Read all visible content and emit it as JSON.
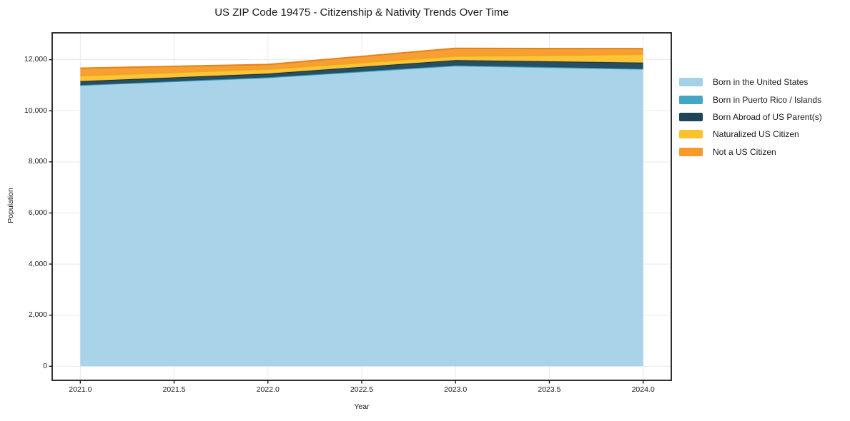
{
  "chart_data": {
    "type": "area",
    "stacked": true,
    "title": "US ZIP Code 19475 - Citizenship & Nativity Trends Over Time",
    "xlabel": "Year",
    "ylabel": "Population",
    "x": [
      2021,
      2022,
      2023,
      2024
    ],
    "series": [
      {
        "name": "Born in the United States",
        "color": "#a3d1e8",
        "edge": "#5fb3d4",
        "values": [
          11000,
          11300,
          11760,
          11630
        ]
      },
      {
        "name": "Born in Puerto Rico / Islands",
        "color": "#45a5c4",
        "edge": "#2e8fae",
        "values": [
          10,
          10,
          20,
          15
        ]
      },
      {
        "name": "Born Abroad of US Parent(s)",
        "color": "#1f4456",
        "edge": "#16323f",
        "values": [
          150,
          145,
          200,
          240
        ]
      },
      {
        "name": "Naturalized US Citizen",
        "color": "#fcc22e",
        "edge": "#edb213",
        "values": [
          205,
          170,
          155,
          320
        ]
      },
      {
        "name": "Not a US Citizen",
        "color": "#f89a28",
        "edge": "#e2831a",
        "values": [
          300,
          185,
          310,
          225
        ]
      }
    ],
    "totals": [
      11665,
      11810,
      12445,
      12430
    ],
    "xticks": {
      "values": [
        2021.0,
        2021.5,
        2022.0,
        2022.5,
        2023.0,
        2023.5,
        2024.0
      ],
      "labels": [
        "2021.0",
        "2021.5",
        "2022.0",
        "2022.5",
        "2023.0",
        "2023.5",
        "2024.0"
      ]
    },
    "yticks": {
      "values": [
        0,
        2000,
        4000,
        6000,
        8000,
        10000,
        12000
      ],
      "labels": [
        "0",
        "2,000",
        "4,000",
        "6,000",
        "8,000",
        "10,000",
        "12,000"
      ]
    },
    "xlim": [
      2020.85,
      2024.15
    ],
    "ylim": [
      -550,
      13050
    ],
    "grid": true,
    "legend_position": "right-outside"
  },
  "colors": {
    "background": "#ffffff",
    "grid": "#e9e9e9",
    "spine": "#1a1a1a",
    "text": "#1a1a1a"
  }
}
